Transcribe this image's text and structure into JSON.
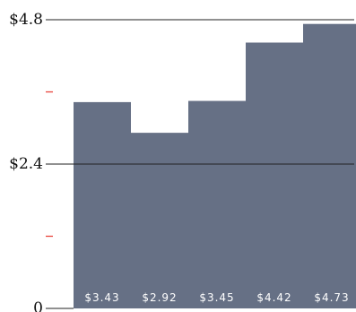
{
  "chart_data": {
    "type": "bar",
    "title": "",
    "xlabel": "",
    "ylabel": "",
    "categories": [
      "",
      "",
      "",
      "",
      ""
    ],
    "values": [
      3.43,
      2.92,
      3.45,
      4.42,
      4.73
    ],
    "value_labels": [
      "$3.43",
      "$2.92",
      "$3.45",
      "$4.42",
      "$4.73"
    ],
    "ylim": [
      0,
      4.8
    ],
    "y_ticks": [
      {
        "value": 0,
        "label": "0"
      },
      {
        "value": 2.4,
        "label": "$2.4"
      },
      {
        "value": 4.8,
        "label": "$4.8"
      }
    ],
    "minor_ticks": [
      1.2,
      3.6
    ],
    "grid": true,
    "legend": "none",
    "colors": {
      "bar": "#667085",
      "value_label": "#ffffff",
      "minor_tick": "#e8453c",
      "grid": "#222222"
    }
  }
}
